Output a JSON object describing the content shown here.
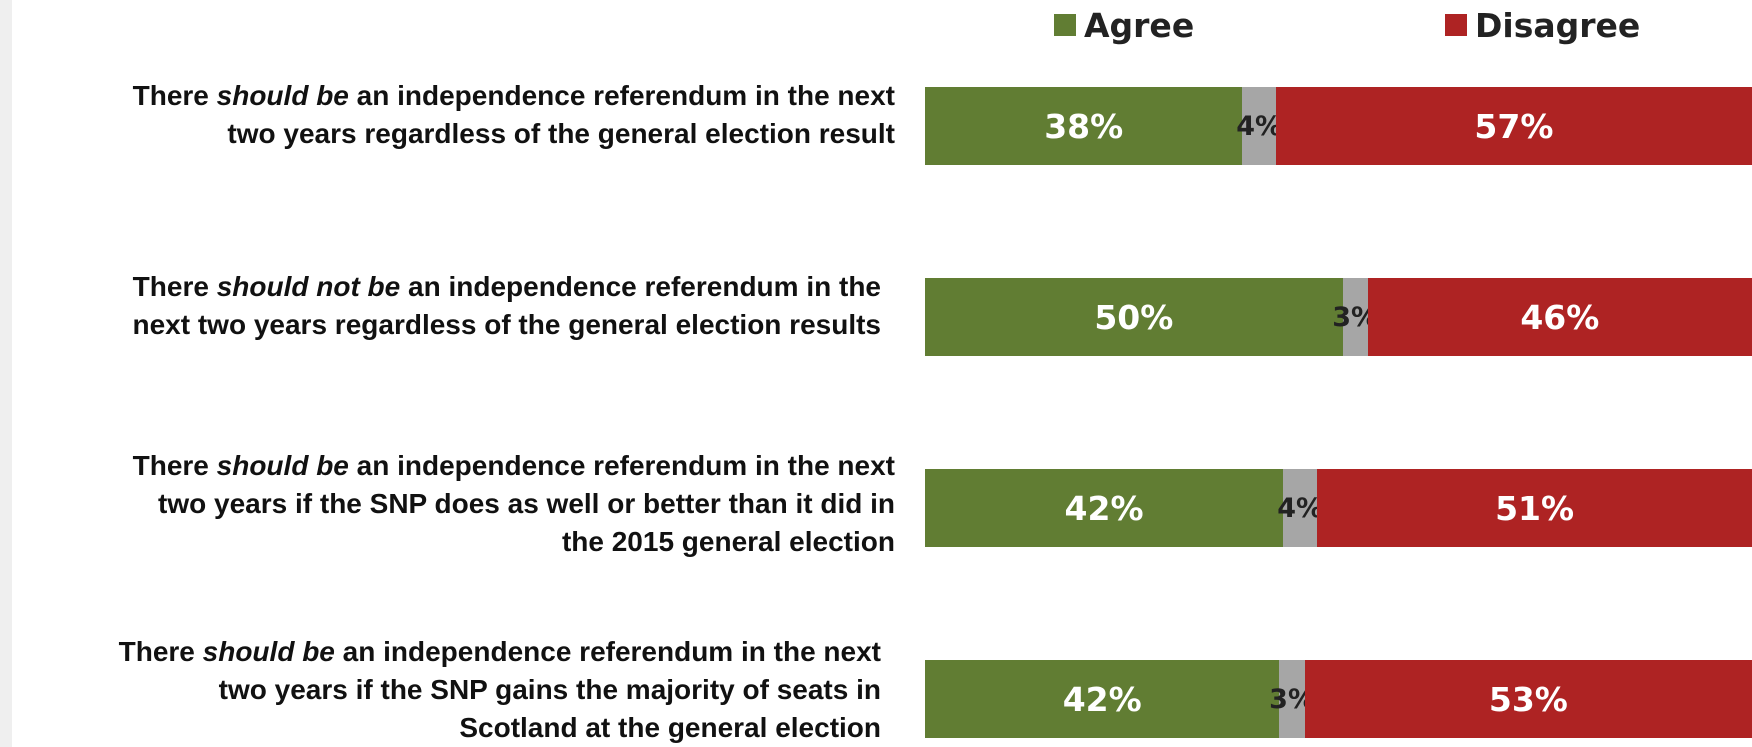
{
  "colors": {
    "agree": "#617d33",
    "neutral": "#a6a6a6",
    "disagree": "#ae2323"
  },
  "legend": {
    "agree": "Agree",
    "disagree": "Disagree"
  },
  "rows": [
    {
      "label_pre": "There ",
      "label_em": "should be",
      "label_line1_post": " an independence referendum in the next",
      "label_line2": "two years regardless of the general election result",
      "label_line3": ""
    },
    {
      "label_pre": "There ",
      "label_em": "should not be",
      "label_line1_post": " an independence referendum in the",
      "label_line2": "next two years regardless of the general election results",
      "label_line3": ""
    },
    {
      "label_pre": "There ",
      "label_em": "should be",
      "label_line1_post": " an independence referendum in the next",
      "label_line2": "two years if the SNP does as well or better than it did in",
      "label_line3": "the 2015 general election"
    },
    {
      "label_pre": "There ",
      "label_em": "should be",
      "label_line1_post": " an independence referendum in the next",
      "label_line2": "two years if the SNP gains the majority of seats in",
      "label_line3": "Scotland at the general election"
    }
  ],
  "chart_data": {
    "type": "bar",
    "orientation": "horizontal",
    "stacked": true,
    "categories": [
      "There should be an independence referendum in the next two years regardless of the general election result",
      "There should not be an independence referendum in the next two years regardless of the general election results",
      "There should be an independence referendum in the next two years if the SNP does as well or better than it did in the 2015 general election",
      "There should be an independence referendum in the next two years if the SNP gains the majority of seats in Scotland at the general election"
    ],
    "series": [
      {
        "name": "Agree",
        "values": [
          38,
          50,
          42,
          42
        ],
        "labels": [
          "38%",
          "50%",
          "42%",
          "42%"
        ]
      },
      {
        "values": [
          4,
          3,
          4,
          3
        ],
        "labels": [
          "4%",
          "3%",
          "4%",
          "3%"
        ]
      },
      {
        "name": "Disagree",
        "values": [
          57,
          46,
          51,
          53
        ],
        "labels": [
          "57%",
          "46%",
          "51%",
          "53%"
        ]
      }
    ],
    "legend_position": "top-right",
    "grid": false
  }
}
